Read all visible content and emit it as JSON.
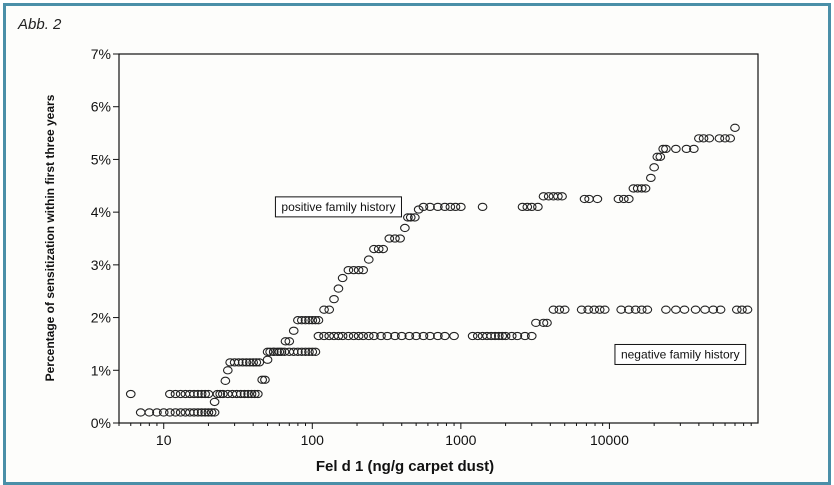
{
  "figure_label": "Abb. 2",
  "chart_data": {
    "type": "scatter",
    "title": "",
    "xlabel": "Fel d 1 (ng/g carpet dust)",
    "ylabel": "Percentage of sensitization within first three years",
    "x_scale": "log",
    "xlim": [
      5,
      100000
    ],
    "ylim": [
      0,
      7
    ],
    "x_ticks": [
      {
        "value": 10,
        "label": "10"
      },
      {
        "value": 100,
        "label": "100"
      },
      {
        "value": 1000,
        "label": "1000"
      },
      {
        "value": 10000,
        "label": "10000"
      }
    ],
    "y_ticks": [
      {
        "value": 0,
        "label": "0%"
      },
      {
        "value": 1,
        "label": "1%"
      },
      {
        "value": 2,
        "label": "2%"
      },
      {
        "value": 3,
        "label": "3%"
      },
      {
        "value": 4,
        "label": "4%"
      },
      {
        "value": 5,
        "label": "5%"
      },
      {
        "value": 6,
        "label": "6%"
      },
      {
        "value": 7,
        "label": "7%"
      }
    ],
    "grid": false,
    "marker": "open-circle",
    "series": [
      {
        "name": "positive family history",
        "points": [
          [
            6,
            0.55
          ],
          [
            11,
            0.55
          ],
          [
            12,
            0.55
          ],
          [
            13,
            0.55
          ],
          [
            14,
            0.55
          ],
          [
            15,
            0.55
          ],
          [
            16,
            0.55
          ],
          [
            17,
            0.55
          ],
          [
            18,
            0.55
          ],
          [
            19,
            0.55
          ],
          [
            20,
            0.55
          ],
          [
            22,
            0.4
          ],
          [
            24,
            0.55
          ],
          [
            26,
            0.8
          ],
          [
            27,
            1.0
          ],
          [
            28,
            1.15
          ],
          [
            30,
            1.15
          ],
          [
            32,
            1.15
          ],
          [
            34,
            1.15
          ],
          [
            36,
            1.15
          ],
          [
            38,
            1.15
          ],
          [
            40,
            1.15
          ],
          [
            42,
            1.15
          ],
          [
            44,
            1.15
          ],
          [
            46,
            0.82
          ],
          [
            48,
            0.82
          ],
          [
            50,
            1.2
          ],
          [
            52,
            1.35
          ],
          [
            55,
            1.35
          ],
          [
            58,
            1.35
          ],
          [
            62,
            1.35
          ],
          [
            66,
            1.55
          ],
          [
            70,
            1.55
          ],
          [
            75,
            1.75
          ],
          [
            80,
            1.95
          ],
          [
            85,
            1.95
          ],
          [
            90,
            1.95
          ],
          [
            95,
            1.95
          ],
          [
            100,
            1.95
          ],
          [
            105,
            1.95
          ],
          [
            110,
            1.95
          ],
          [
            120,
            2.15
          ],
          [
            130,
            2.15
          ],
          [
            140,
            2.35
          ],
          [
            150,
            2.55
          ],
          [
            160,
            2.75
          ],
          [
            175,
            2.9
          ],
          [
            190,
            2.9
          ],
          [
            205,
            2.9
          ],
          [
            220,
            2.9
          ],
          [
            240,
            3.1
          ],
          [
            260,
            3.3
          ],
          [
            280,
            3.3
          ],
          [
            300,
            3.3
          ],
          [
            330,
            3.5
          ],
          [
            360,
            3.5
          ],
          [
            390,
            3.5
          ],
          [
            420,
            3.7
          ],
          [
            440,
            3.9
          ],
          [
            460,
            3.9
          ],
          [
            490,
            3.9
          ],
          [
            520,
            4.05
          ],
          [
            560,
            4.1
          ],
          [
            620,
            4.1
          ],
          [
            700,
            4.1
          ],
          [
            780,
            4.1
          ],
          [
            850,
            4.1
          ],
          [
            920,
            4.1
          ],
          [
            1000,
            4.1
          ],
          [
            1400,
            4.1
          ],
          [
            2600,
            4.1
          ],
          [
            2800,
            4.1
          ],
          [
            3000,
            4.1
          ],
          [
            3300,
            4.1
          ],
          [
            3600,
            4.3
          ],
          [
            3900,
            4.3
          ],
          [
            4200,
            4.3
          ],
          [
            4500,
            4.3
          ],
          [
            4800,
            4.3
          ],
          [
            6800,
            4.25
          ],
          [
            7300,
            4.25
          ],
          [
            8300,
            4.25
          ],
          [
            11500,
            4.25
          ],
          [
            12500,
            4.25
          ],
          [
            13500,
            4.25
          ],
          [
            14500,
            4.45
          ],
          [
            15500,
            4.45
          ],
          [
            16500,
            4.45
          ],
          [
            17500,
            4.45
          ],
          [
            19000,
            4.65
          ],
          [
            20000,
            4.85
          ],
          [
            21000,
            5.05
          ],
          [
            22000,
            5.05
          ],
          [
            23000,
            5.2
          ],
          [
            24000,
            5.2
          ],
          [
            28000,
            5.2
          ],
          [
            33000,
            5.2
          ],
          [
            37000,
            5.2
          ],
          [
            40000,
            5.4
          ],
          [
            43000,
            5.4
          ],
          [
            47000,
            5.4
          ],
          [
            55000,
            5.4
          ],
          [
            60000,
            5.4
          ],
          [
            65000,
            5.4
          ],
          [
            70000,
            5.6
          ]
        ]
      },
      {
        "name": "negative family history",
        "points": [
          [
            7,
            0.2
          ],
          [
            8,
            0.2
          ],
          [
            9,
            0.2
          ],
          [
            10,
            0.2
          ],
          [
            11,
            0.2
          ],
          [
            12,
            0.2
          ],
          [
            13,
            0.2
          ],
          [
            14,
            0.2
          ],
          [
            15,
            0.2
          ],
          [
            16,
            0.2
          ],
          [
            17,
            0.2
          ],
          [
            18,
            0.2
          ],
          [
            19,
            0.2
          ],
          [
            20,
            0.2
          ],
          [
            21,
            0.2
          ],
          [
            22,
            0.2
          ],
          [
            23,
            0.55
          ],
          [
            25,
            0.55
          ],
          [
            27,
            0.55
          ],
          [
            29,
            0.55
          ],
          [
            31,
            0.55
          ],
          [
            33,
            0.55
          ],
          [
            35,
            0.55
          ],
          [
            37,
            0.55
          ],
          [
            39,
            0.55
          ],
          [
            41,
            0.55
          ],
          [
            43,
            0.55
          ],
          [
            50,
            1.35
          ],
          [
            55,
            1.35
          ],
          [
            60,
            1.35
          ],
          [
            65,
            1.35
          ],
          [
            70,
            1.35
          ],
          [
            75,
            1.35
          ],
          [
            80,
            1.35
          ],
          [
            85,
            1.35
          ],
          [
            90,
            1.35
          ],
          [
            95,
            1.35
          ],
          [
            100,
            1.35
          ],
          [
            105,
            1.35
          ],
          [
            110,
            1.65
          ],
          [
            120,
            1.65
          ],
          [
            130,
            1.65
          ],
          [
            140,
            1.65
          ],
          [
            150,
            1.65
          ],
          [
            160,
            1.65
          ],
          [
            175,
            1.65
          ],
          [
            190,
            1.65
          ],
          [
            205,
            1.65
          ],
          [
            220,
            1.65
          ],
          [
            240,
            1.65
          ],
          [
            260,
            1.65
          ],
          [
            290,
            1.65
          ],
          [
            320,
            1.65
          ],
          [
            360,
            1.65
          ],
          [
            400,
            1.65
          ],
          [
            450,
            1.65
          ],
          [
            500,
            1.65
          ],
          [
            560,
            1.65
          ],
          [
            620,
            1.65
          ],
          [
            700,
            1.65
          ],
          [
            780,
            1.65
          ],
          [
            900,
            1.65
          ],
          [
            1200,
            1.65
          ],
          [
            1300,
            1.65
          ],
          [
            1400,
            1.65
          ],
          [
            1500,
            1.65
          ],
          [
            1600,
            1.65
          ],
          [
            1700,
            1.65
          ],
          [
            1800,
            1.65
          ],
          [
            1900,
            1.65
          ],
          [
            2000,
            1.65
          ],
          [
            2200,
            1.65
          ],
          [
            2400,
            1.65
          ],
          [
            2700,
            1.65
          ],
          [
            3000,
            1.65
          ],
          [
            3200,
            1.9
          ],
          [
            3600,
            1.9
          ],
          [
            3800,
            1.9
          ],
          [
            4200,
            2.15
          ],
          [
            4600,
            2.15
          ],
          [
            5000,
            2.15
          ],
          [
            6500,
            2.15
          ],
          [
            7200,
            2.15
          ],
          [
            7900,
            2.15
          ],
          [
            8600,
            2.15
          ],
          [
            9300,
            2.15
          ],
          [
            12000,
            2.15
          ],
          [
            13500,
            2.15
          ],
          [
            15000,
            2.15
          ],
          [
            16500,
            2.15
          ],
          [
            18000,
            2.15
          ],
          [
            24000,
            2.15
          ],
          [
            28000,
            2.15
          ],
          [
            32000,
            2.15
          ],
          [
            38000,
            2.15
          ],
          [
            44000,
            2.15
          ],
          [
            50000,
            2.15
          ],
          [
            56000,
            2.15
          ],
          [
            72000,
            2.15
          ],
          [
            78000,
            2.15
          ],
          [
            85000,
            2.15
          ]
        ]
      }
    ],
    "annotations": [
      {
        "text": "positive family history",
        "x": 150,
        "y": 4.1
      },
      {
        "text": "negative family history",
        "x": 30000,
        "y": 1.3
      }
    ]
  }
}
